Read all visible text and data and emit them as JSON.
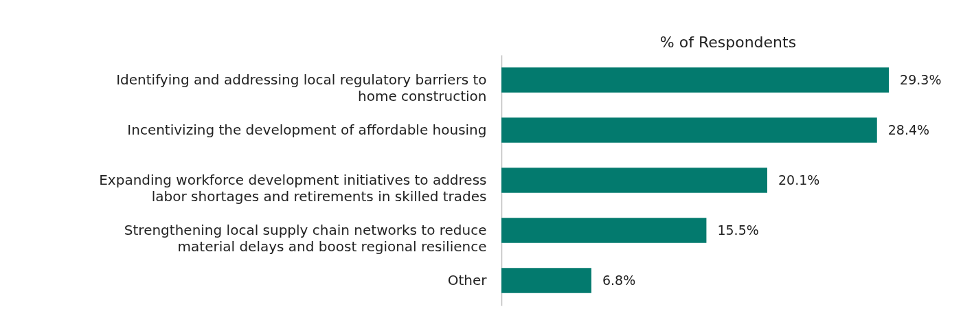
{
  "chart_data": {
    "type": "bar",
    "orientation": "horizontal",
    "title": "% of Respondents",
    "categories": [
      "Identifying and addressing local regulatory barriers to home construction",
      "Incentivizing the development of affordable housing",
      "Expanding workforce development initiatives to address labor shortages and retirements in skilled trades",
      "Strengthening local supply chain networks to reduce material delays and boost regional resilience",
      "Other"
    ],
    "values": [
      29.3,
      28.4,
      20.1,
      15.5,
      6.8
    ],
    "value_labels": [
      "29.3%",
      "28.4%",
      "20.1%",
      "15.5%",
      "6.8%"
    ],
    "color": "#037a6e"
  }
}
